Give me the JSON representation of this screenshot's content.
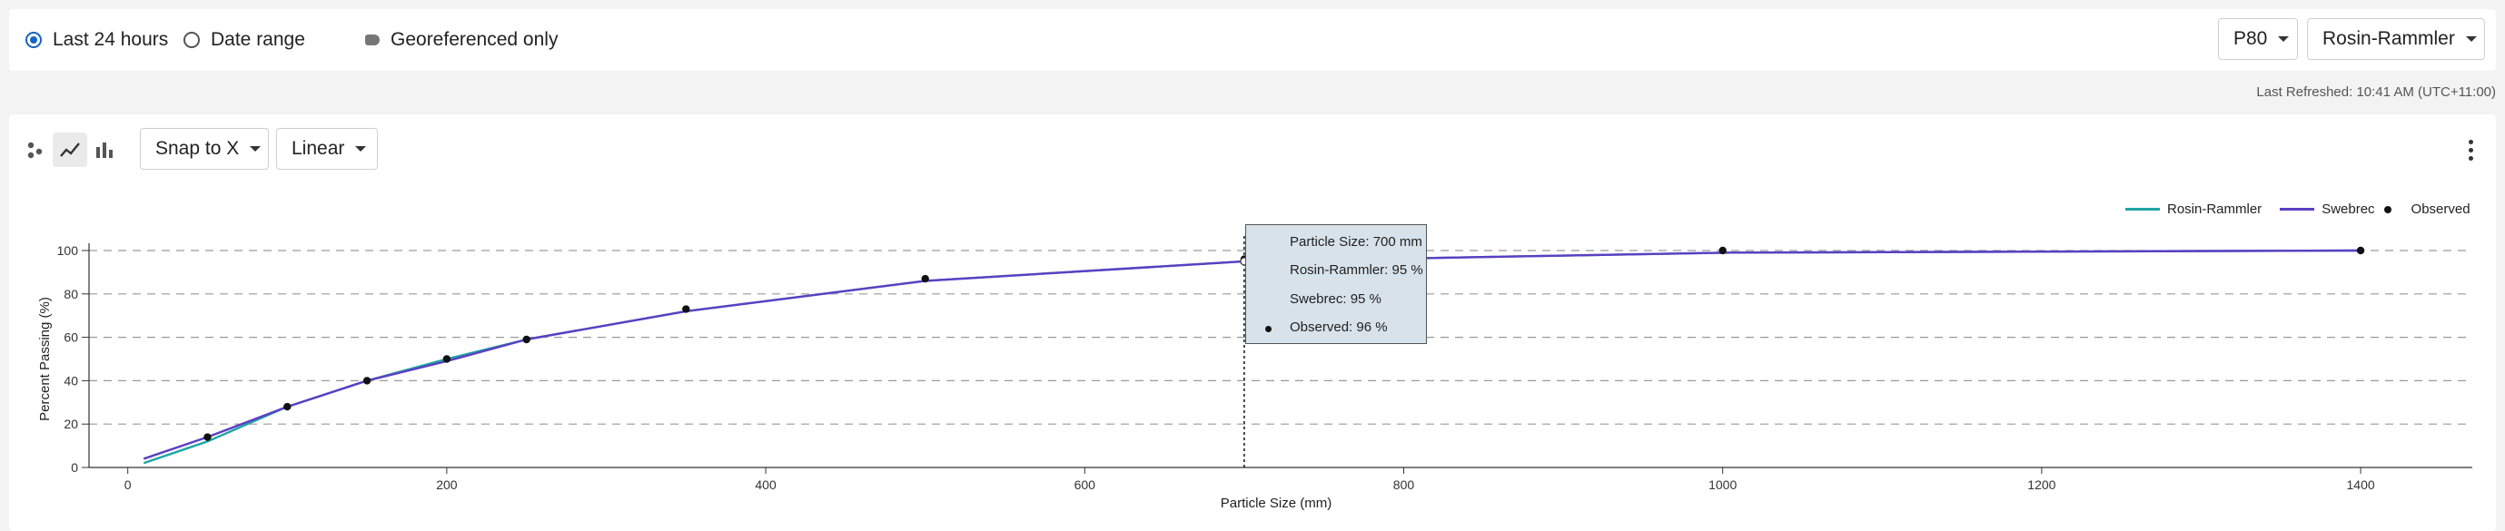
{
  "filters": {
    "last24_label": "Last 24 hours",
    "date_range_label": "Date range",
    "georef_label": "Georeferenced only",
    "percentile_value": "P80",
    "model_value": "Rosin-Rammler"
  },
  "last_refreshed": "Last Refreshed: 10:41 AM (UTC+11:00)",
  "toolbar": {
    "snap_value": "Snap to X",
    "scale_value": "Linear"
  },
  "tooltip": {
    "particle_size": "Particle Size: 700 mm",
    "rosin": "Rosin-Rammler: 95 %",
    "swebrec": "Swebrec: 95 %",
    "observed": "Observed: 96 %"
  },
  "colors": {
    "rosin": "#1fa5a5",
    "swebrec": "#5b3fc4",
    "observed": "#111111",
    "accent": "#1565c0"
  },
  "chart_data": {
    "type": "line",
    "xlabel": "Particle Size (mm)",
    "ylabel": "Percent Passing (%)",
    "xlim": [
      -30,
      1470
    ],
    "ylim": [
      0,
      100
    ],
    "xticks": [
      0,
      200,
      400,
      600,
      800,
      1000,
      1200,
      1400
    ],
    "yticks": [
      0,
      20,
      40,
      60,
      80,
      100
    ],
    "legend_position": "top-right",
    "grid": "horizontal-dashed",
    "crosshair_x": 700,
    "series": [
      {
        "name": "Rosin-Rammler",
        "kind": "line",
        "x": [
          10,
          50,
          100,
          150,
          200,
          250,
          350,
          500,
          700,
          1000,
          1400
        ],
        "y": [
          2,
          12,
          28,
          40,
          50,
          59,
          72,
          86,
          95,
          99,
          100
        ]
      },
      {
        "name": "Swebrec",
        "kind": "line",
        "x": [
          10,
          50,
          100,
          150,
          200,
          250,
          350,
          500,
          700,
          1000,
          1400
        ],
        "y": [
          4,
          14,
          28,
          40,
          49,
          59,
          72,
          86,
          95,
          99,
          100
        ]
      },
      {
        "name": "Observed",
        "kind": "scatter",
        "x": [
          50,
          100,
          150,
          200,
          250,
          350,
          500,
          700,
          1000,
          1400
        ],
        "y": [
          14,
          28,
          40,
          50,
          59,
          73,
          87,
          96,
          100,
          100
        ]
      }
    ]
  }
}
